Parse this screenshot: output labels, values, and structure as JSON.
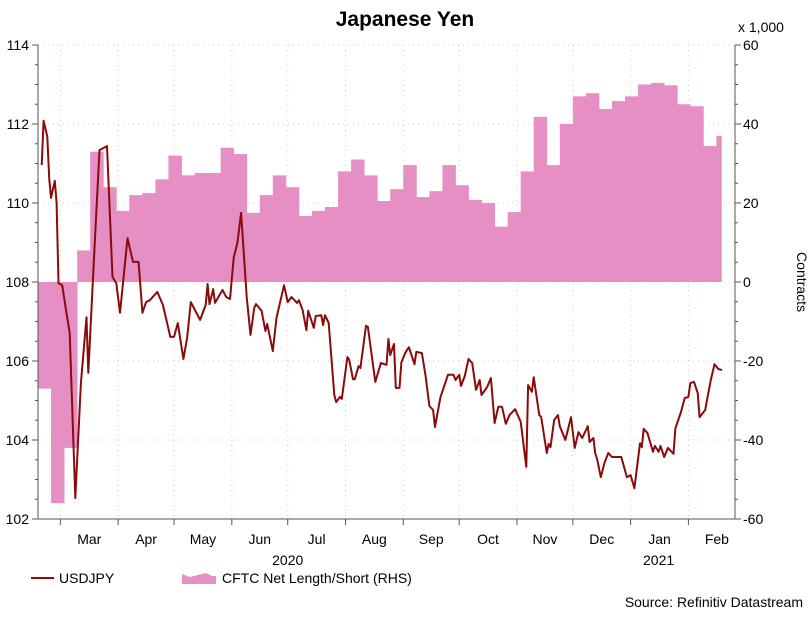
{
  "chart_data": {
    "type": "line+area",
    "title": "Japanese Yen",
    "left_axis": {
      "ylim": [
        102,
        114
      ],
      "ticks": [
        102,
        104,
        106,
        108,
        110,
        112,
        114
      ]
    },
    "right_axis": {
      "ylim": [
        -60,
        60
      ],
      "ticks": [
        -60,
        -40,
        -20,
        0,
        20,
        40,
        60
      ],
      "multiplier_label": "x 1,000",
      "label": "Contracts"
    },
    "x_axis": {
      "xlim": [
        "2020-02-18",
        "2021-02-26"
      ],
      "month_labels": [
        {
          "date": "2020-03-01",
          "label": "Mar"
        },
        {
          "date": "2020-04-01",
          "label": "Apr"
        },
        {
          "date": "2020-05-01",
          "label": "May"
        },
        {
          "date": "2020-06-01",
          "label": "Jun"
        },
        {
          "date": "2020-07-01",
          "label": "Jul"
        },
        {
          "date": "2020-08-01",
          "label": "Aug"
        },
        {
          "date": "2020-09-01",
          "label": "Sep"
        },
        {
          "date": "2020-10-01",
          "label": "Oct"
        },
        {
          "date": "2020-11-01",
          "label": "Nov"
        },
        {
          "date": "2020-12-01",
          "label": "Dec"
        },
        {
          "date": "2021-01-01",
          "label": "Jan"
        },
        {
          "date": "2021-02-01",
          "label": "Feb"
        }
      ],
      "year_labels": [
        {
          "date": "2020-07-01",
          "label": "2020"
        },
        {
          "date": "2021-01-16",
          "label": "2021"
        }
      ]
    },
    "grid": true,
    "legend_placement": "bottom-left",
    "source": "Source: Refinitiv Datastream",
    "series": [
      {
        "name": "USDJPY",
        "axis": "left",
        "type": "line",
        "color": "#8B0A0A",
        "points": [
          [
            "2020-02-20",
            110.96
          ],
          [
            "2020-02-21",
            112.08
          ],
          [
            "2020-02-23",
            111.68
          ],
          [
            "2020-02-24",
            110.63
          ],
          [
            "2020-02-25",
            110.13
          ],
          [
            "2020-02-27",
            110.56
          ],
          [
            "2020-02-28",
            110.0
          ],
          [
            "2020-02-29",
            107.97
          ],
          [
            "2020-03-02",
            107.92
          ],
          [
            "2020-03-04",
            107.29
          ],
          [
            "2020-03-06",
            106.71
          ],
          [
            "2020-03-09",
            102.53
          ],
          [
            "2020-03-12",
            105.44
          ],
          [
            "2020-03-15",
            107.11
          ],
          [
            "2020-03-16",
            105.7
          ],
          [
            "2020-03-19",
            108.56
          ],
          [
            "2020-03-22",
            111.34
          ],
          [
            "2020-03-26",
            111.44
          ],
          [
            "2020-03-29",
            108.13
          ],
          [
            "2020-03-31",
            107.97
          ],
          [
            "2020-04-02",
            107.22
          ],
          [
            "2020-04-06",
            109.11
          ],
          [
            "2020-04-09",
            108.51
          ],
          [
            "2020-04-12",
            108.51
          ],
          [
            "2020-04-14",
            107.22
          ],
          [
            "2020-04-16",
            107.49
          ],
          [
            "2020-04-18",
            107.54
          ],
          [
            "2020-04-22",
            107.75
          ],
          [
            "2020-04-25",
            107.42
          ],
          [
            "2020-04-29",
            106.61
          ],
          [
            "2020-05-01",
            106.61
          ],
          [
            "2020-05-03",
            106.96
          ],
          [
            "2020-05-06",
            106.05
          ],
          [
            "2020-05-08",
            106.58
          ],
          [
            "2020-05-10",
            107.49
          ],
          [
            "2020-05-15",
            107.04
          ],
          [
            "2020-05-18",
            107.42
          ],
          [
            "2020-05-19",
            107.95
          ],
          [
            "2020-05-20",
            107.44
          ],
          [
            "2020-05-22",
            107.82
          ],
          [
            "2020-05-23",
            107.47
          ],
          [
            "2020-05-27",
            107.8
          ],
          [
            "2020-05-29",
            107.62
          ],
          [
            "2020-05-31",
            107.57
          ],
          [
            "2020-06-02",
            108.61
          ],
          [
            "2020-06-04",
            108.99
          ],
          [
            "2020-06-06",
            109.75
          ],
          [
            "2020-06-09",
            107.62
          ],
          [
            "2020-06-11",
            106.66
          ],
          [
            "2020-06-13",
            107.34
          ],
          [
            "2020-06-14",
            107.44
          ],
          [
            "2020-06-17",
            107.27
          ],
          [
            "2020-06-19",
            106.76
          ],
          [
            "2020-06-20",
            106.94
          ],
          [
            "2020-06-23",
            106.25
          ],
          [
            "2020-06-25",
            107.09
          ],
          [
            "2020-06-29",
            107.92
          ],
          [
            "2020-07-01",
            107.49
          ],
          [
            "2020-07-03",
            107.62
          ],
          [
            "2020-07-06",
            107.47
          ],
          [
            "2020-07-07",
            107.54
          ],
          [
            "2020-07-09",
            107.29
          ],
          [
            "2020-07-11",
            106.78
          ],
          [
            "2020-07-12",
            107.27
          ],
          [
            "2020-07-15",
            106.84
          ],
          [
            "2020-07-16",
            107.14
          ],
          [
            "2020-07-19",
            107.16
          ],
          [
            "2020-07-20",
            106.91
          ],
          [
            "2020-07-21",
            107.16
          ],
          [
            "2020-07-23",
            106.96
          ],
          [
            "2020-07-26",
            105.14
          ],
          [
            "2020-07-27",
            104.96
          ],
          [
            "2020-07-29",
            105.09
          ],
          [
            "2020-07-30",
            105.04
          ],
          [
            "2020-08-02",
            106.1
          ],
          [
            "2020-08-03",
            106.03
          ],
          [
            "2020-08-05",
            105.54
          ],
          [
            "2020-08-06",
            105.54
          ],
          [
            "2020-08-08",
            105.87
          ],
          [
            "2020-08-09",
            105.82
          ],
          [
            "2020-08-12",
            106.89
          ],
          [
            "2020-08-13",
            106.86
          ],
          [
            "2020-08-17",
            105.47
          ],
          [
            "2020-08-20",
            105.95
          ],
          [
            "2020-08-23",
            105.9
          ],
          [
            "2020-08-24",
            106.56
          ],
          [
            "2020-08-25",
            106.15
          ],
          [
            "2020-08-27",
            106.43
          ],
          [
            "2020-08-28",
            105.32
          ],
          [
            "2020-08-30",
            105.32
          ],
          [
            "2020-08-31",
            105.97
          ],
          [
            "2020-09-02",
            106.2
          ],
          [
            "2020-09-04",
            106.35
          ],
          [
            "2020-09-07",
            105.92
          ],
          [
            "2020-09-08",
            106.23
          ],
          [
            "2020-09-11",
            106.2
          ],
          [
            "2020-09-13",
            105.62
          ],
          [
            "2020-09-15",
            104.86
          ],
          [
            "2020-09-17",
            104.76
          ],
          [
            "2020-09-18",
            104.33
          ],
          [
            "2020-09-21",
            105.09
          ],
          [
            "2020-09-25",
            105.65
          ],
          [
            "2020-09-28",
            105.65
          ],
          [
            "2020-09-29",
            105.52
          ],
          [
            "2020-10-01",
            105.65
          ],
          [
            "2020-10-02",
            105.37
          ],
          [
            "2020-10-04",
            105.62
          ],
          [
            "2020-10-06",
            106.05
          ],
          [
            "2020-10-08",
            105.95
          ],
          [
            "2020-10-10",
            105.27
          ],
          [
            "2020-10-12",
            105.52
          ],
          [
            "2020-10-13",
            105.14
          ],
          [
            "2020-10-16",
            105.34
          ],
          [
            "2020-10-18",
            105.57
          ],
          [
            "2020-10-20",
            104.43
          ],
          [
            "2020-10-22",
            104.84
          ],
          [
            "2020-10-24",
            104.84
          ],
          [
            "2020-10-26",
            104.41
          ],
          [
            "2020-10-28",
            104.63
          ],
          [
            "2020-10-31",
            104.78
          ],
          [
            "2020-11-03",
            104.46
          ],
          [
            "2020-11-06",
            103.32
          ],
          [
            "2020-11-07",
            105.39
          ],
          [
            "2020-11-09",
            105.22
          ],
          [
            "2020-11-10",
            105.59
          ],
          [
            "2020-11-13",
            104.63
          ],
          [
            "2020-11-14",
            104.58
          ],
          [
            "2020-11-17",
            103.67
          ],
          [
            "2020-11-18",
            103.9
          ],
          [
            "2020-11-19",
            103.82
          ],
          [
            "2020-11-21",
            104.51
          ],
          [
            "2020-11-23",
            104.63
          ],
          [
            "2020-11-24",
            104.35
          ],
          [
            "2020-11-27",
            104.0
          ],
          [
            "2020-11-30",
            104.58
          ],
          [
            "2020-12-02",
            103.8
          ],
          [
            "2020-12-04",
            104.2
          ],
          [
            "2020-12-06",
            104.05
          ],
          [
            "2020-12-09",
            104.35
          ],
          [
            "2020-12-10",
            103.95
          ],
          [
            "2020-12-12",
            104.05
          ],
          [
            "2020-12-13",
            103.67
          ],
          [
            "2020-12-14",
            103.52
          ],
          [
            "2020-12-16",
            103.06
          ],
          [
            "2020-12-18",
            103.42
          ],
          [
            "2020-12-20",
            103.67
          ],
          [
            "2020-12-22",
            103.57
          ],
          [
            "2020-12-27",
            103.57
          ],
          [
            "2020-12-30",
            103.06
          ],
          [
            "2021-01-01",
            103.11
          ],
          [
            "2021-01-03",
            102.78
          ],
          [
            "2021-01-06",
            103.92
          ],
          [
            "2021-01-07",
            103.82
          ],
          [
            "2021-01-08",
            104.28
          ],
          [
            "2021-01-10",
            104.18
          ],
          [
            "2021-01-13",
            103.7
          ],
          [
            "2021-01-14",
            103.85
          ],
          [
            "2021-01-16",
            103.7
          ],
          [
            "2021-01-17",
            103.85
          ],
          [
            "2021-01-19",
            103.57
          ],
          [
            "2021-01-21",
            103.8
          ],
          [
            "2021-01-24",
            103.65
          ],
          [
            "2021-01-25",
            104.3
          ],
          [
            "2021-01-28",
            104.71
          ],
          [
            "2021-01-30",
            105.06
          ],
          [
            "2021-02-01",
            105.09
          ],
          [
            "2021-02-02",
            105.44
          ],
          [
            "2021-02-04",
            105.47
          ],
          [
            "2021-02-06",
            105.19
          ],
          [
            "2021-02-07",
            104.58
          ],
          [
            "2021-02-10",
            104.76
          ],
          [
            "2021-02-11",
            105.01
          ],
          [
            "2021-02-13",
            105.52
          ],
          [
            "2021-02-15",
            105.92
          ],
          [
            "2021-02-17",
            105.8
          ],
          [
            "2021-02-19",
            105.77
          ]
        ]
      },
      {
        "name": "CFTC Net Length/Short (RHS)",
        "axis": "right",
        "type": "step-area",
        "color": "#E58FC4",
        "points": [
          [
            "2020-02-18",
            -27
          ],
          [
            "2020-02-25",
            -56
          ],
          [
            "2020-03-03",
            -42
          ],
          [
            "2020-03-10",
            8
          ],
          [
            "2020-03-17",
            33
          ],
          [
            "2020-03-24",
            24
          ],
          [
            "2020-03-31",
            18
          ],
          [
            "2020-04-07",
            22
          ],
          [
            "2020-04-14",
            22.5
          ],
          [
            "2020-04-21",
            26
          ],
          [
            "2020-04-28",
            32
          ],
          [
            "2020-05-05",
            27
          ],
          [
            "2020-05-12",
            27.6
          ],
          [
            "2020-05-19",
            27.6
          ],
          [
            "2020-05-26",
            34
          ],
          [
            "2020-06-02",
            32.4
          ],
          [
            "2020-06-09",
            17.5
          ],
          [
            "2020-06-16",
            22
          ],
          [
            "2020-06-23",
            27
          ],
          [
            "2020-06-30",
            24
          ],
          [
            "2020-07-07",
            16.7
          ],
          [
            "2020-07-14",
            18
          ],
          [
            "2020-07-21",
            19
          ],
          [
            "2020-07-28",
            28
          ],
          [
            "2020-08-04",
            31
          ],
          [
            "2020-08-11",
            27
          ],
          [
            "2020-08-18",
            20.5
          ],
          [
            "2020-08-25",
            23.5
          ],
          [
            "2020-09-01",
            29.6
          ],
          [
            "2020-09-08",
            21.5
          ],
          [
            "2020-09-15",
            23
          ],
          [
            "2020-09-22",
            29.6
          ],
          [
            "2020-09-29",
            24.5
          ],
          [
            "2020-10-06",
            20.8
          ],
          [
            "2020-10-13",
            20
          ],
          [
            "2020-10-20",
            14
          ],
          [
            "2020-10-27",
            17.7
          ],
          [
            "2020-11-03",
            28
          ],
          [
            "2020-11-10",
            41.8
          ],
          [
            "2020-11-17",
            29.6
          ],
          [
            "2020-11-24",
            40
          ],
          [
            "2020-12-01",
            47
          ],
          [
            "2020-12-08",
            47.8
          ],
          [
            "2020-12-15",
            43.8
          ],
          [
            "2020-12-22",
            45.8
          ],
          [
            "2020-12-29",
            47
          ],
          [
            "2021-01-05",
            50
          ],
          [
            "2021-01-12",
            50.4
          ],
          [
            "2021-01-19",
            49.8
          ],
          [
            "2021-01-26",
            45
          ],
          [
            "2021-02-02",
            44.5
          ],
          [
            "2021-02-09",
            34.4
          ],
          [
            "2021-02-16",
            37
          ]
        ]
      }
    ]
  }
}
